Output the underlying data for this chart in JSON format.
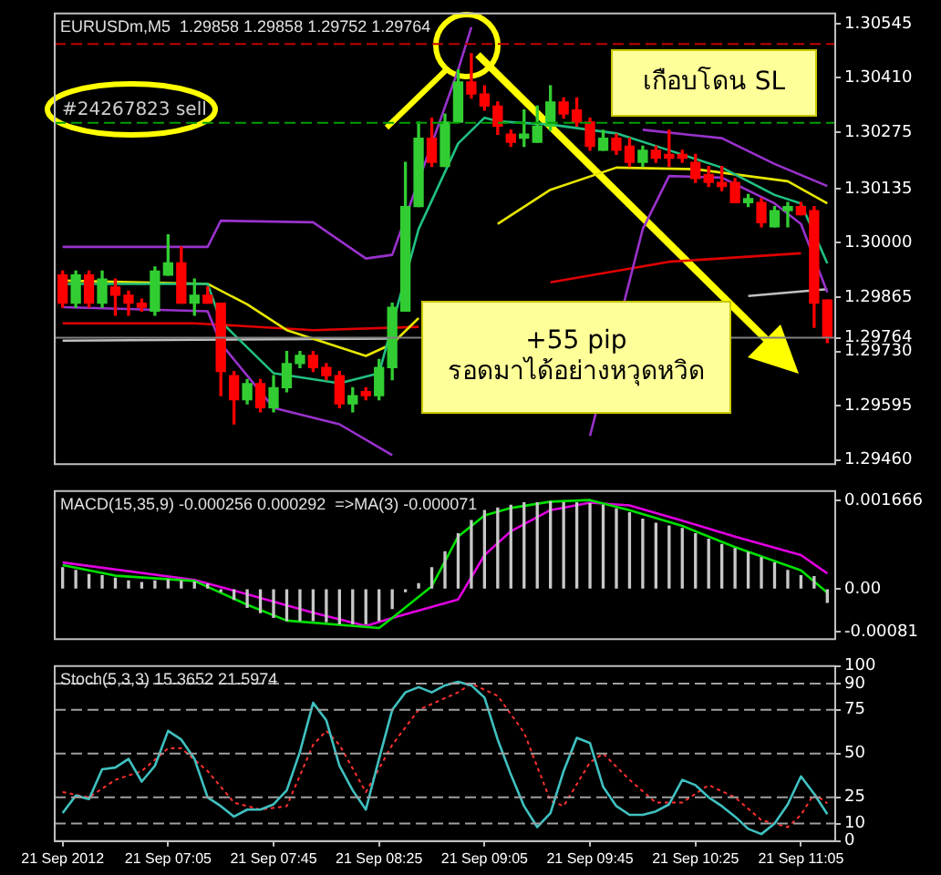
{
  "chart_data": [
    {
      "type": "candlestick",
      "title": "EURUSDm,M5  1.29858 1.29858 1.29752 1.29764",
      "x": [
        "2012-09-21T06:25",
        "2012-09-21T06:30",
        "2012-09-21T06:35",
        "2012-09-21T06:40",
        "2012-09-21T06:45",
        "2012-09-21T06:50",
        "2012-09-21T06:55",
        "2012-09-21T07:00",
        "2012-09-21T07:05",
        "2012-09-21T07:10",
        "2012-09-21T07:15",
        "2012-09-21T07:20",
        "2012-09-21T07:25",
        "2012-09-21T07:30",
        "2012-09-21T07:35",
        "2012-09-21T07:40",
        "2012-09-21T07:45",
        "2012-09-21T07:50",
        "2012-09-21T07:55",
        "2012-09-21T08:00",
        "2012-09-21T08:05",
        "2012-09-21T08:10",
        "2012-09-21T08:15",
        "2012-09-21T08:20",
        "2012-09-21T08:25",
        "2012-09-21T08:30",
        "2012-09-21T08:35",
        "2012-09-21T08:40",
        "2012-09-21T08:45",
        "2012-09-21T08:50",
        "2012-09-21T08:55",
        "2012-09-21T09:00",
        "2012-09-21T09:05",
        "2012-09-21T09:10",
        "2012-09-21T09:15",
        "2012-09-21T09:20",
        "2012-09-21T09:25",
        "2012-09-21T09:30",
        "2012-09-21T09:35",
        "2012-09-21T09:40",
        "2012-09-21T09:45",
        "2012-09-21T09:50",
        "2012-09-21T09:55",
        "2012-09-21T10:00",
        "2012-09-21T10:05",
        "2012-09-21T10:10",
        "2012-09-21T10:15",
        "2012-09-21T10:20",
        "2012-09-21T10:25",
        "2012-09-21T10:30",
        "2012-09-21T10:35",
        "2012-09-21T10:40",
        "2012-09-21T10:45",
        "2012-09-21T10:50",
        "2012-09-21T10:55",
        "2012-09-21T11:00",
        "2012-09-21T11:05",
        "2012-09-21T11:10",
        "2012-09-21T11:15"
      ],
      "ohlc": [
        [
          1.2992,
          1.2993,
          1.2984,
          1.2985
        ],
        [
          1.2985,
          1.2993,
          1.2984,
          1.2992
        ],
        [
          1.2992,
          1.2993,
          1.2984,
          1.2985
        ],
        [
          1.2985,
          1.2993,
          1.2984,
          1.2991
        ],
        [
          1.2989,
          1.2991,
          1.2982,
          1.2987
        ],
        [
          1.2987,
          1.2988,
          1.2982,
          1.2985
        ],
        [
          1.2985,
          1.2986,
          1.2983,
          1.2984
        ],
        [
          1.2983,
          1.2994,
          1.2982,
          1.2993
        ],
        [
          1.2992,
          1.3002,
          1.2992,
          1.2995
        ],
        [
          1.2995,
          1.2999,
          1.2985,
          1.2985
        ],
        [
          1.2985,
          1.2991,
          1.2982,
          1.2987
        ],
        [
          1.2987,
          1.2989,
          1.2985,
          1.2985
        ],
        [
          1.2985,
          1.2985,
          1.2962,
          1.2968
        ],
        [
          1.2967,
          1.2968,
          1.2955,
          1.2961
        ],
        [
          1.2961,
          1.2966,
          1.296,
          1.2965
        ],
        [
          1.2965,
          1.2966,
          1.2958,
          1.2959
        ],
        [
          1.2959,
          1.2967,
          1.2958,
          1.2964
        ],
        [
          1.2964,
          1.2973,
          1.2963,
          1.297
        ],
        [
          1.297,
          1.2973,
          1.2969,
          1.2972
        ],
        [
          1.2972,
          1.2973,
          1.2968,
          1.2969
        ],
        [
          1.2969,
          1.297,
          1.2966,
          1.2967
        ],
        [
          1.2967,
          1.2968,
          1.2959,
          1.296
        ],
        [
          1.296,
          1.2964,
          1.2958,
          1.2962
        ],
        [
          1.2963,
          1.2964,
          1.2961,
          1.2962
        ],
        [
          1.2962,
          1.2971,
          1.2961,
          1.2969
        ],
        [
          1.2969,
          1.2985,
          1.2966,
          1.2984
        ],
        [
          1.2983,
          1.302,
          1.2983,
          1.3009
        ],
        [
          1.3009,
          1.303,
          1.3009,
          1.3026
        ],
        [
          1.3026,
          1.3031,
          1.3019,
          1.302
        ],
        [
          1.3019,
          1.3032,
          1.3019,
          1.303
        ],
        [
          1.303,
          1.3043,
          1.303,
          1.304
        ],
        [
          1.304,
          1.3047,
          1.3036,
          1.3037
        ],
        [
          1.3037,
          1.3039,
          1.3033,
          1.3034
        ],
        [
          1.3034,
          1.3035,
          1.3027,
          1.3029
        ],
        [
          1.3027,
          1.3028,
          1.3024,
          1.3025
        ],
        [
          1.3026,
          1.3033,
          1.3024,
          1.3027
        ],
        [
          1.3025,
          1.3034,
          1.3025,
          1.3029
        ],
        [
          1.3029,
          1.3039,
          1.3028,
          1.3035
        ],
        [
          1.3035,
          1.3036,
          1.3031,
          1.3032
        ],
        [
          1.3033,
          1.3036,
          1.3029,
          1.303
        ],
        [
          1.303,
          1.3031,
          1.3023,
          1.3024
        ],
        [
          1.3023,
          1.3028,
          1.3023,
          1.3026
        ],
        [
          1.3026,
          1.3027,
          1.3022,
          1.3023
        ],
        [
          1.3024,
          1.3026,
          1.3019,
          1.302
        ],
        [
          1.302,
          1.3024,
          1.3019,
          1.3023
        ],
        [
          1.3023,
          1.3024,
          1.302,
          1.3021
        ],
        [
          1.3022,
          1.3028,
          1.3019,
          1.3021
        ],
        [
          1.3022,
          1.3023,
          1.302,
          1.3021
        ],
        [
          1.302,
          1.3022,
          1.3015,
          1.3016
        ],
        [
          1.3017,
          1.3019,
          1.3014,
          1.3015
        ],
        [
          1.3015,
          1.3019,
          1.3013,
          1.3014
        ],
        [
          1.3015,
          1.3016,
          1.301,
          1.301
        ],
        [
          1.301,
          1.3012,
          1.3009,
          1.3011
        ],
        [
          1.301,
          1.3011,
          1.3004,
          1.3005
        ],
        [
          1.3004,
          1.3009,
          1.3004,
          1.3008
        ],
        [
          1.3008,
          1.301,
          1.3004,
          1.3009
        ],
        [
          1.3009,
          1.301,
          1.3007,
          1.3007
        ],
        [
          1.3008,
          1.3009,
          1.2979,
          1.2985
        ],
        [
          1.29858,
          1.29858,
          1.29752,
          1.29764
        ]
      ],
      "colors": [
        "#ff0000",
        "#32cd32",
        "#ff0000",
        "#32cd32",
        "#ff0000",
        "#ff0000",
        "#ff0000",
        "#32cd32",
        "#32cd32",
        "#ff0000",
        "#32cd32",
        "#ff0000",
        "#ff0000",
        "#ff0000",
        "#32cd32",
        "#ff0000",
        "#32cd32",
        "#32cd32",
        "#32cd32",
        "#ff0000",
        "#ff0000",
        "#ff0000",
        "#32cd32",
        "#ff0000",
        "#32cd32",
        "#32cd32",
        "#32cd32",
        "#32cd32",
        "#ff0000",
        "#32cd32",
        "#32cd32",
        "#ff0000",
        "#ff0000",
        "#ff0000",
        "#ff0000",
        "#32cd32",
        "#32cd32",
        "#32cd32",
        "#ff0000",
        "#ff0000",
        "#ff0000",
        "#32cd32",
        "#ff0000",
        "#ff0000",
        "#32cd32",
        "#ff0000",
        "#ff0000",
        "#ff0000",
        "#ff0000",
        "#ff0000",
        "#ff0000",
        "#ff0000",
        "#32cd32",
        "#ff0000",
        "#32cd32",
        "#32cd32",
        "#ff0000",
        "#ff0000",
        "#ff0000"
      ],
      "series": [
        {
          "type": "line",
          "color": "#9932cc",
          "x": [
            "2012-09-21T06:25",
            "2012-09-21T07:20",
            "2012-09-21T07:25",
            "2012-09-21T08:00",
            "2012-09-21T08:20",
            "2012-09-21T08:30",
            "2012-09-21T08:55",
            "2012-09-21T09:00",
            "2012-09-21T09:05",
            "2012-09-21T10:05",
            "2012-09-21T10:35",
            "2012-09-21T10:55",
            "2012-09-21T11:15"
          ],
          "values": [
            1.2999,
            1.2999,
            1.30055,
            1.30051,
            1.29961,
            1.2997,
            1.3043,
            1.30536,
            null,
            1.30281,
            1.3026,
            1.30196,
            1.30141
          ]
        },
        {
          "type": "line",
          "color": "#9932cc",
          "x": [
            "2012-09-21T06:25",
            "2012-09-21T07:20",
            "2012-09-21T07:25",
            "2012-09-21T07:45",
            "2012-09-21T08:10",
            "2012-09-21T08:30",
            "2012-09-21T08:35",
            "2012-09-21T09:45",
            "2012-09-21T10:05",
            "2012-09-21T10:15",
            "2012-09-21T10:35",
            "2012-09-21T10:55",
            "2012-09-21T11:05",
            "2012-09-21T11:15"
          ],
          "values": [
            1.2984,
            1.2983,
            1.2975,
            1.2959,
            1.29549,
            1.29472,
            null,
            1.2952,
            1.30034,
            1.30166,
            1.30162,
            1.30098,
            1.30047,
            1.29877
          ]
        },
        {
          "type": "line",
          "color": "#20c080",
          "x": [
            "2012-09-21T06:25",
            "2012-09-21T07:20",
            "2012-09-21T07:25",
            "2012-09-21T07:45",
            "2012-09-21T08:10",
            "2012-09-21T08:25",
            "2012-09-21T08:40",
            "2012-09-21T08:55",
            "2012-09-21T09:05",
            "2012-09-21T09:10",
            "2012-09-21T09:30",
            "2012-09-21T09:55",
            "2012-09-21T10:15",
            "2012-09-21T10:35",
            "2012-09-21T10:55",
            "2012-09-21T11:05",
            "2012-09-21T11:15"
          ],
          "values": [
            1.29898,
            1.29898,
            1.29804,
            1.29676,
            1.29651,
            1.29676,
            1.30034,
            1.30247,
            1.30311,
            1.30302,
            1.30294,
            1.30272,
            1.3023,
            1.30187,
            1.30119,
            1.30098,
            1.29949
          ]
        },
        {
          "type": "line",
          "color": "#e6e600",
          "x": [
            "2012-09-21T06:25",
            "2012-09-21T07:20",
            "2012-09-21T07:35",
            "2012-09-21T07:50",
            "2012-09-21T08:20",
            "2012-09-21T08:30",
            "2012-09-21T08:40",
            "2012-09-21T08:50",
            "2012-09-21T09:10",
            "2012-09-21T09:30",
            "2012-09-21T09:55",
            "2012-09-21T10:25",
            "2012-09-21T11:00",
            "2012-09-21T11:15"
          ],
          "values": [
            1.29906,
            1.29898,
            1.29847,
            1.29783,
            1.29719,
            1.29749,
            1.29813,
            null,
            1.30047,
            1.30132,
            1.30187,
            1.30183,
            1.30153,
            1.30098
          ]
        },
        {
          "type": "line",
          "color": "#e00000",
          "x": [
            "2012-09-21T06:25",
            "2012-09-21T07:15",
            "2012-09-21T08:00",
            "2012-09-21T08:40",
            "2012-09-21T08:45",
            "2012-09-21T09:30",
            "2012-09-21T10:15",
            "2012-09-21T11:05"
          ],
          "values": [
            1.298,
            1.298,
            1.29783,
            1.29791,
            null,
            1.29902,
            1.29953,
            1.29974
          ]
        },
        {
          "type": "line",
          "color": "#c0c0c0",
          "x": [
            "2012-09-21T06:25",
            "2012-09-21T08:30",
            "2012-09-21T08:35",
            "2012-09-21T10:45",
            "2012-09-21T11:15"
          ],
          "values": [
            1.29757,
            1.29762,
            null,
            1.29868,
            1.29885
          ]
        }
      ],
      "xlim": [
        "2012-09-21T06:22",
        "2012-09-21T11:18"
      ],
      "ylim": [
        1.2945,
        1.3057
      ],
      "yticks": [
        1.30545,
        {
          "value": 1.3041,
          "label": "1.30410"
        },
        1.30275,
        1.30135,
        {
          "value": 1.3,
          "label": "1.30000"
        },
        1.29865,
        1.29764,
        {
          "value": 1.2973,
          "label": "1.29730"
        },
        1.29595,
        {
          "value": 1.2946,
          "label": "1.29460"
        }
      ],
      "tick_labels": "y",
      "ref_lines": [
        {
          "axis": "y",
          "value": 1.30494,
          "color": "#c00000",
          "line_style": "dashed"
        },
        {
          "axis": "y",
          "value": 1.30298,
          "label": "#24267823 sell",
          "color": "#00a000",
          "line_style": "dashed"
        },
        {
          "axis": "y",
          "value": 1.29764,
          "color": "#808080",
          "line_style": "solid"
        }
      ],
      "annotations": [
        "เกือบโดน SL",
        "+55 pip",
        "รอดมาได้อย่างหวุดหวิด"
      ]
    },
    {
      "type": "bar",
      "title": "MACD(15,35,9) -0.000256 0.000292  =>MA(3) -0.000071",
      "x": [
        "2012-09-21T06:25",
        "2012-09-21T06:30",
        "2012-09-21T06:35",
        "2012-09-21T06:40",
        "2012-09-21T06:45",
        "2012-09-21T06:50",
        "2012-09-21T06:55",
        "2012-09-21T07:00",
        "2012-09-21T07:05",
        "2012-09-21T07:10",
        "2012-09-21T07:15",
        "2012-09-21T07:20",
        "2012-09-21T07:25",
        "2012-09-21T07:30",
        "2012-09-21T07:35",
        "2012-09-21T07:40",
        "2012-09-21T07:45",
        "2012-09-21T07:50",
        "2012-09-21T07:55",
        "2012-09-21T08:00",
        "2012-09-21T08:05",
        "2012-09-21T08:10",
        "2012-09-21T08:15",
        "2012-09-21T08:20",
        "2012-09-21T08:25",
        "2012-09-21T08:30",
        "2012-09-21T08:35",
        "2012-09-21T08:40",
        "2012-09-21T08:45",
        "2012-09-21T08:50",
        "2012-09-21T08:55",
        "2012-09-21T09:00",
        "2012-09-21T09:05",
        "2012-09-21T09:10",
        "2012-09-21T09:15",
        "2012-09-21T09:20",
        "2012-09-21T09:25",
        "2012-09-21T09:30",
        "2012-09-21T09:35",
        "2012-09-21T09:40",
        "2012-09-21T09:45",
        "2012-09-21T09:50",
        "2012-09-21T09:55",
        "2012-09-21T10:00",
        "2012-09-21T10:05",
        "2012-09-21T10:10",
        "2012-09-21T10:15",
        "2012-09-21T10:20",
        "2012-09-21T10:25",
        "2012-09-21T10:30",
        "2012-09-21T10:35",
        "2012-09-21T10:40",
        "2012-09-21T10:45",
        "2012-09-21T10:50",
        "2012-09-21T10:55",
        "2012-09-21T11:00",
        "2012-09-21T11:05",
        "2012-09-21T11:10",
        "2012-09-21T11:15"
      ],
      "series": [
        {
          "color": "#c8c8c8",
          "values": [
            0.0004,
            0.00035,
            0.00027,
            0.00025,
            0.0002,
            0.00015,
            0.00012,
            0.00015,
            0.00017,
            0.00015,
            0.00013,
            9e-05,
            -5e-05,
            -0.0002,
            -0.00035,
            -0.00045,
            -0.00054,
            -0.0006,
            -0.0006,
            -0.0006,
            -0.00062,
            -0.00066,
            -0.00066,
            -0.00066,
            -0.0006,
            -0.00037,
            -5e-05,
            0.0001,
            0.0004,
            0.0007,
            0.00104,
            0.00129,
            0.00148,
            0.00153,
            0.00158,
            0.00163,
            0.00163,
            0.00165,
            0.00163,
            0.00163,
            0.00161,
            0.00158,
            0.00151,
            0.00144,
            0.00132,
            0.00124,
            0.00119,
            0.00114,
            0.00104,
            0.00094,
            0.00084,
            0.00076,
            0.00069,
            0.00059,
            0.00049,
            0.00035,
            0.00025,
            0.00023,
            -0.000256
          ]
        },
        {
          "type": "line",
          "color": "#00e000",
          "x": [
            "2012-09-21T06:25",
            "2012-09-21T06:45",
            "2012-09-21T07:15",
            "2012-09-21T07:35",
            "2012-09-21T07:50",
            "2012-09-21T08:25",
            "2012-09-21T08:30",
            "2012-09-21T08:45",
            "2012-09-21T08:55",
            "2012-09-21T09:05",
            "2012-09-21T09:15",
            "2012-09-21T09:30",
            "2012-09-21T09:45",
            "2012-09-21T10:00",
            "2012-09-21T10:20",
            "2012-09-21T10:40",
            "2012-09-21T11:05",
            "2012-09-21T11:15"
          ],
          "values": [
            0.00045,
            0.00025,
            0.00015,
            -0.0003,
            -0.0006,
            -0.00074,
            -0.00055,
            5e-05,
            0.00099,
            0.00139,
            0.00153,
            0.00165,
            0.00168,
            0.00149,
            0.00119,
            0.00079,
            0.00035,
            -7.1e-05
          ]
        },
        {
          "type": "line",
          "color": "#e000e0",
          "x": [
            "2012-09-21T06:25",
            "2012-09-21T07:15",
            "2012-09-21T07:35",
            "2012-09-21T08:00",
            "2012-09-21T08:20",
            "2012-09-21T08:30",
            "2012-09-21T08:55",
            "2012-09-21T09:05",
            "2012-09-21T09:15",
            "2012-09-21T09:30",
            "2012-09-21T09:45",
            "2012-09-21T10:00",
            "2012-09-21T10:20",
            "2012-09-21T10:40",
            "2012-09-21T11:05",
            "2012-09-21T11:15"
          ],
          "values": [
            0.0005,
            0.00017,
            -0.0001,
            -0.00045,
            -0.0007,
            -0.00055,
            -0.0002,
            0.00064,
            0.00109,
            0.00149,
            0.00163,
            0.00158,
            0.00129,
            0.00099,
            0.00064,
            0.000292
          ]
        }
      ],
      "xlim": [
        "2012-09-21T06:22",
        "2012-09-21T11:18"
      ],
      "ylim": [
        -0.00095,
        0.00185
      ],
      "yticks": [
        0.001666,
        {
          "value": 0,
          "label": "0.00"
        },
        -0.00081
      ],
      "tick_labels": "y"
    },
    {
      "type": "line",
      "title": "Stoch(5,3,3) 15.3652 21.5974",
      "x": [
        "2012-09-21T06:25",
        "2012-09-21T06:30",
        "2012-09-21T06:35",
        "2012-09-21T06:40",
        "2012-09-21T06:45",
        "2012-09-21T06:50",
        "2012-09-21T06:55",
        "2012-09-21T07:00",
        "2012-09-21T07:05",
        "2012-09-21T07:10",
        "2012-09-21T07:15",
        "2012-09-21T07:20",
        "2012-09-21T07:25",
        "2012-09-21T07:30",
        "2012-09-21T07:35",
        "2012-09-21T07:40",
        "2012-09-21T07:45",
        "2012-09-21T07:50",
        "2012-09-21T07:55",
        "2012-09-21T08:00",
        "2012-09-21T08:05",
        "2012-09-21T08:10",
        "2012-09-21T08:15",
        "2012-09-21T08:20",
        "2012-09-21T08:25",
        "2012-09-21T08:30",
        "2012-09-21T08:35",
        "2012-09-21T08:40",
        "2012-09-21T08:45",
        "2012-09-21T08:50",
        "2012-09-21T08:55",
        "2012-09-21T09:00",
        "2012-09-21T09:05",
        "2012-09-21T09:10",
        "2012-09-21T09:15",
        "2012-09-21T09:20",
        "2012-09-21T09:25",
        "2012-09-21T09:30",
        "2012-09-21T09:35",
        "2012-09-21T09:40",
        "2012-09-21T09:45",
        "2012-09-21T09:50",
        "2012-09-21T09:55",
        "2012-09-21T10:00",
        "2012-09-21T10:05",
        "2012-09-21T10:10",
        "2012-09-21T10:15",
        "2012-09-21T10:20",
        "2012-09-21T10:25",
        "2012-09-21T10:30",
        "2012-09-21T10:35",
        "2012-09-21T10:40",
        "2012-09-21T10:45",
        "2012-09-21T10:50",
        "2012-09-21T10:55",
        "2012-09-21T11:00",
        "2012-09-21T11:05",
        "2012-09-21T11:10",
        "2012-09-21T11:15"
      ],
      "series": [
        {
          "color": "#40c0c0",
          "values": [
            16,
            26,
            24,
            41,
            42,
            47,
            34,
            43,
            63,
            58,
            47,
            25,
            20,
            14,
            18,
            18,
            21,
            29,
            51,
            79,
            69,
            43,
            29,
            18,
            47,
            75,
            85,
            88,
            85,
            89,
            91,
            89,
            82,
            58,
            38,
            20,
            8,
            16,
            40,
            59,
            56,
            31,
            20,
            15,
            15,
            17,
            21,
            35,
            32,
            25,
            20,
            14,
            7,
            4,
            10,
            21,
            37,
            27,
            15.3652
          ]
        },
        {
          "color": "#ff3030",
          "line_style": "dotted",
          "x": [
            "2012-09-21T06:25",
            "2012-09-21T06:35",
            "2012-09-21T06:45",
            "2012-09-21T06:55",
            "2012-09-21T07:05",
            "2012-09-21T07:10",
            "2012-09-21T07:20",
            "2012-09-21T07:30",
            "2012-09-21T07:40",
            "2012-09-21T07:50",
            "2012-09-21T08:00",
            "2012-09-21T08:05",
            "2012-09-21T08:10",
            "2012-09-21T08:20",
            "2012-09-21T08:30",
            "2012-09-21T08:40",
            "2012-09-21T08:55",
            "2012-09-21T09:00",
            "2012-09-21T09:10",
            "2012-09-21T09:20",
            "2012-09-21T09:30",
            "2012-09-21T09:35",
            "2012-09-21T09:45",
            "2012-09-21T09:50",
            "2012-09-21T10:00",
            "2012-09-21T10:10",
            "2012-09-21T10:20",
            "2012-09-21T10:30",
            "2012-09-21T10:40",
            "2012-09-21T10:50",
            "2012-09-21T11:00",
            "2012-09-21T11:05",
            "2012-09-21T11:10",
            "2012-09-21T11:15"
          ],
          "values": [
            28,
            25,
            35,
            40,
            53,
            53,
            40,
            22,
            18,
            20,
            55,
            63,
            55,
            28,
            55,
            75,
            85,
            90,
            83,
            62,
            23,
            20,
            45,
            50,
            35,
            22,
            22,
            32,
            25,
            12,
            8,
            15,
            27,
            21.5974
          ]
        }
      ],
      "xlim": [
        "2012-09-21T06:22",
        "2012-09-21T11:18"
      ],
      "xticks": [
        {
          "value": "2012-09-21T06:25",
          "label": "21 Sep 2012"
        },
        {
          "value": "2012-09-21T07:05",
          "label": "21 Sep 07:05"
        },
        {
          "value": "2012-09-21T07:45",
          "label": "21 Sep 07:45"
        },
        {
          "value": "2012-09-21T08:25",
          "label": "21 Sep 08:25"
        },
        {
          "value": "2012-09-21T09:05",
          "label": "21 Sep 09:05"
        },
        {
          "value": "2012-09-21T09:45",
          "label": "21 Sep 09:45"
        },
        {
          "value": "2012-09-21T10:25",
          "label": "21 Sep 10:25"
        },
        {
          "value": "2012-09-21T11:05",
          "label": "21 Sep 11:05"
        }
      ],
      "ylim": [
        0,
        100
      ],
      "yticks": [
        0,
        10,
        25,
        50,
        75,
        90,
        100
      ],
      "ref_lines": [
        {
          "axis": "y",
          "value": 90,
          "color": "#a0a0a0",
          "line_style": "dashed"
        },
        {
          "axis": "y",
          "value": 75,
          "color": "#a0a0a0",
          "line_style": "dashed"
        },
        {
          "axis": "y",
          "value": 50,
          "color": "#a0a0a0",
          "line_style": "dashed"
        },
        {
          "axis": "y",
          "value": 25,
          "color": "#a0a0a0",
          "line_style": "dashed"
        },
        {
          "axis": "y",
          "value": 10,
          "color": "#a0a0a0",
          "line_style": "dashed"
        }
      ]
    }
  ]
}
